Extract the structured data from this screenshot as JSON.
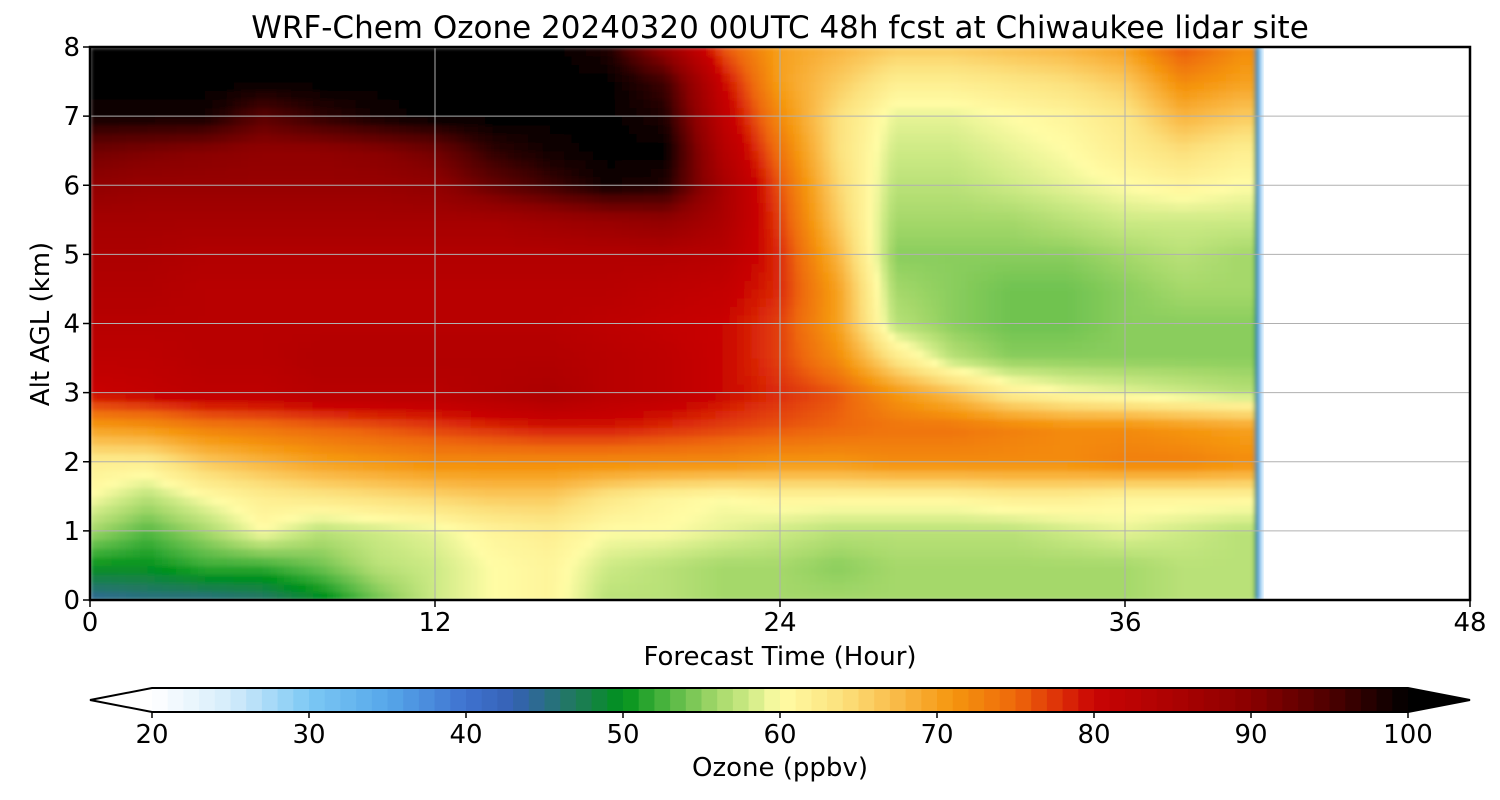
{
  "chart_data": {
    "type": "heatmap",
    "title": "WRF-Chem Ozone  20240320 00UTC 48h fcst at Chiwaukee lidar site",
    "xlabel": "Forecast Time (Hour)",
    "ylabel": "Alt AGL (km)",
    "xlim": [
      0,
      48
    ],
    "ylim": [
      0,
      8
    ],
    "x_ticks": [
      0,
      12,
      24,
      36,
      48
    ],
    "y_ticks": [
      0,
      1,
      2,
      3,
      4,
      5,
      6,
      7,
      8
    ],
    "grid": true,
    "data_extent_hours": 40.5,
    "colorbar": {
      "label": "Ozone  (ppbv)",
      "orientation": "horizontal",
      "placement": "bottom",
      "vmin": 20,
      "vmax": 100,
      "ticks": [
        20,
        30,
        40,
        50,
        60,
        70,
        80,
        90,
        100
      ],
      "extend": "both",
      "colors": [
        {
          "v": 20,
          "c": "#ffffff"
        },
        {
          "v": 25,
          "c": "#d4ecfb"
        },
        {
          "v": 30,
          "c": "#7cc8f4"
        },
        {
          "v": 35,
          "c": "#56a7ea"
        },
        {
          "v": 40,
          "c": "#3f72cf"
        },
        {
          "v": 43,
          "c": "#3561b4"
        },
        {
          "v": 47,
          "c": "#1f7a5a"
        },
        {
          "v": 50,
          "c": "#00921b"
        },
        {
          "v": 53,
          "c": "#54b843"
        },
        {
          "v": 56,
          "c": "#a5d86a"
        },
        {
          "v": 58,
          "c": "#cdea85"
        },
        {
          "v": 60,
          "c": "#fffca5"
        },
        {
          "v": 64,
          "c": "#fce07c"
        },
        {
          "v": 68,
          "c": "#f9b43f"
        },
        {
          "v": 71,
          "c": "#f5960e"
        },
        {
          "v": 75,
          "c": "#ee680b"
        },
        {
          "v": 78,
          "c": "#dc2c07"
        },
        {
          "v": 80,
          "c": "#c90404"
        },
        {
          "v": 85,
          "c": "#ac0202"
        },
        {
          "v": 90,
          "c": "#8a0000"
        },
        {
          "v": 95,
          "c": "#4e0000"
        },
        {
          "v": 100,
          "c": "#000000"
        }
      ]
    },
    "times": [
      0,
      2,
      4,
      6,
      8,
      10,
      12,
      14,
      16,
      18,
      20,
      22,
      24,
      26,
      28,
      30,
      32,
      34,
      36,
      38,
      40
    ],
    "altitudes": [
      0,
      0.5,
      1,
      1.5,
      2,
      2.5,
      3,
      3.5,
      4,
      4.5,
      5,
      5.5,
      6,
      6.5,
      7,
      7.5,
      8
    ],
    "values": [
      [
        44,
        45,
        45,
        46,
        49,
        54,
        58,
        60,
        61,
        57,
        57,
        56,
        56,
        56,
        56,
        56,
        56,
        56,
        56,
        57,
        57
      ],
      [
        50,
        50,
        52,
        52,
        54,
        57,
        58,
        60,
        61,
        58,
        57,
        56,
        56,
        55,
        56,
        56,
        56,
        56,
        56,
        57,
        57
      ],
      [
        56,
        53,
        56,
        60,
        57,
        58,
        59,
        61,
        62,
        60,
        60,
        59,
        58,
        57,
        57,
        57,
        57,
        58,
        59,
        58,
        57
      ],
      [
        60,
        57,
        60,
        62,
        63,
        64,
        65,
        66,
        66,
        63,
        61,
        60,
        61,
        61,
        61,
        61,
        62,
        62,
        61,
        61,
        61
      ],
      [
        62,
        62,
        66,
        68,
        70,
        71,
        72,
        72,
        72,
        72,
        72,
        72,
        71,
        71,
        72,
        72,
        72,
        72,
        73,
        73,
        72
      ],
      [
        70,
        71,
        73,
        74,
        75,
        76,
        77,
        78,
        79,
        79,
        78,
        77,
        76,
        75,
        74,
        74,
        73,
        72,
        72,
        71,
        70
      ],
      [
        80,
        81,
        82,
        82,
        83,
        83,
        83,
        84,
        85,
        83,
        82,
        80,
        78,
        76,
        71,
        67,
        62,
        60,
        59,
        58,
        57
      ],
      [
        82,
        82,
        83,
        83,
        84,
        84,
        84,
        84,
        84,
        83,
        82,
        80,
        77,
        72,
        63,
        57,
        55,
        55,
        55,
        55,
        55
      ],
      [
        83,
        83,
        83,
        83,
        83,
        83,
        83,
        83,
        83,
        82,
        81,
        80,
        77,
        70,
        57,
        55,
        54,
        54,
        55,
        55,
        55
      ],
      [
        84,
        84,
        83,
        83,
        83,
        83,
        83,
        83,
        83,
        83,
        82,
        81,
        78,
        70,
        56,
        55,
        54,
        54,
        55,
        56,
        56
      ],
      [
        85,
        85,
        84,
        84,
        84,
        84,
        84,
        84,
        84,
        84,
        84,
        83,
        78,
        68,
        55,
        55,
        55,
        55,
        56,
        57,
        56
      ],
      [
        86,
        86,
        86,
        86,
        86,
        86,
        86,
        86,
        87,
        88,
        89,
        85,
        77,
        66,
        56,
        56,
        56,
        57,
        58,
        58,
        58
      ],
      [
        89,
        88,
        88,
        88,
        88,
        88,
        89,
        93,
        96,
        99,
        98,
        86,
        76,
        65,
        57,
        57,
        58,
        59,
        60,
        61,
        60
      ],
      [
        92,
        91,
        90,
        89,
        89,
        90,
        92,
        97,
        99,
        100,
        100,
        84,
        74,
        64,
        58,
        58,
        59,
        60,
        62,
        64,
        62
      ],
      [
        99,
        99,
        99,
        94,
        97,
        99,
        100,
        100,
        100,
        100,
        98,
        82,
        72,
        64,
        59,
        59,
        60,
        61,
        63,
        68,
        66
      ],
      [
        100,
        100,
        100,
        100,
        100,
        100,
        100,
        100,
        100,
        100,
        96,
        80,
        70,
        66,
        62,
        62,
        63,
        64,
        66,
        72,
        70
      ],
      [
        100,
        100,
        100,
        100,
        100,
        100,
        100,
        100,
        100,
        98,
        88,
        76,
        70,
        68,
        66,
        66,
        67,
        68,
        70,
        76,
        72
      ]
    ]
  }
}
